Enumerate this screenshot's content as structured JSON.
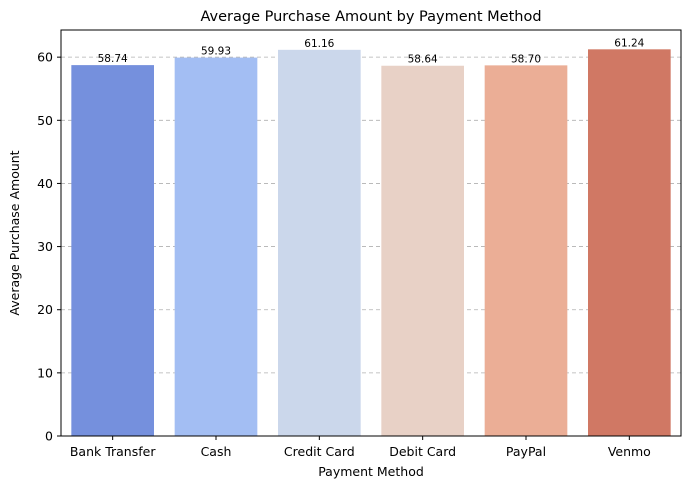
{
  "chart_data": {
    "type": "bar",
    "title": "Average Purchase Amount by Payment Method",
    "xlabel": "Payment Method",
    "ylabel": "Average Purchase Amount",
    "categories": [
      "Bank Transfer",
      "Cash",
      "Credit Card",
      "Debit Card",
      "PayPal",
      "Venmo"
    ],
    "values": [
      58.74,
      59.93,
      61.16,
      58.64,
      58.7,
      61.24
    ],
    "value_labels": [
      "58.74",
      "59.93",
      "61.16",
      "58.64",
      "58.70",
      "61.24"
    ],
    "colors": [
      "#7590dd",
      "#a3bef3",
      "#cbd7eb",
      "#e8d1c6",
      "#ebae96",
      "#d07864"
    ],
    "ylim": [
      0,
      64.3
    ],
    "yticks": [
      0,
      10,
      20,
      30,
      40,
      50,
      60
    ],
    "grid": "y-dashed",
    "legend": "none"
  }
}
